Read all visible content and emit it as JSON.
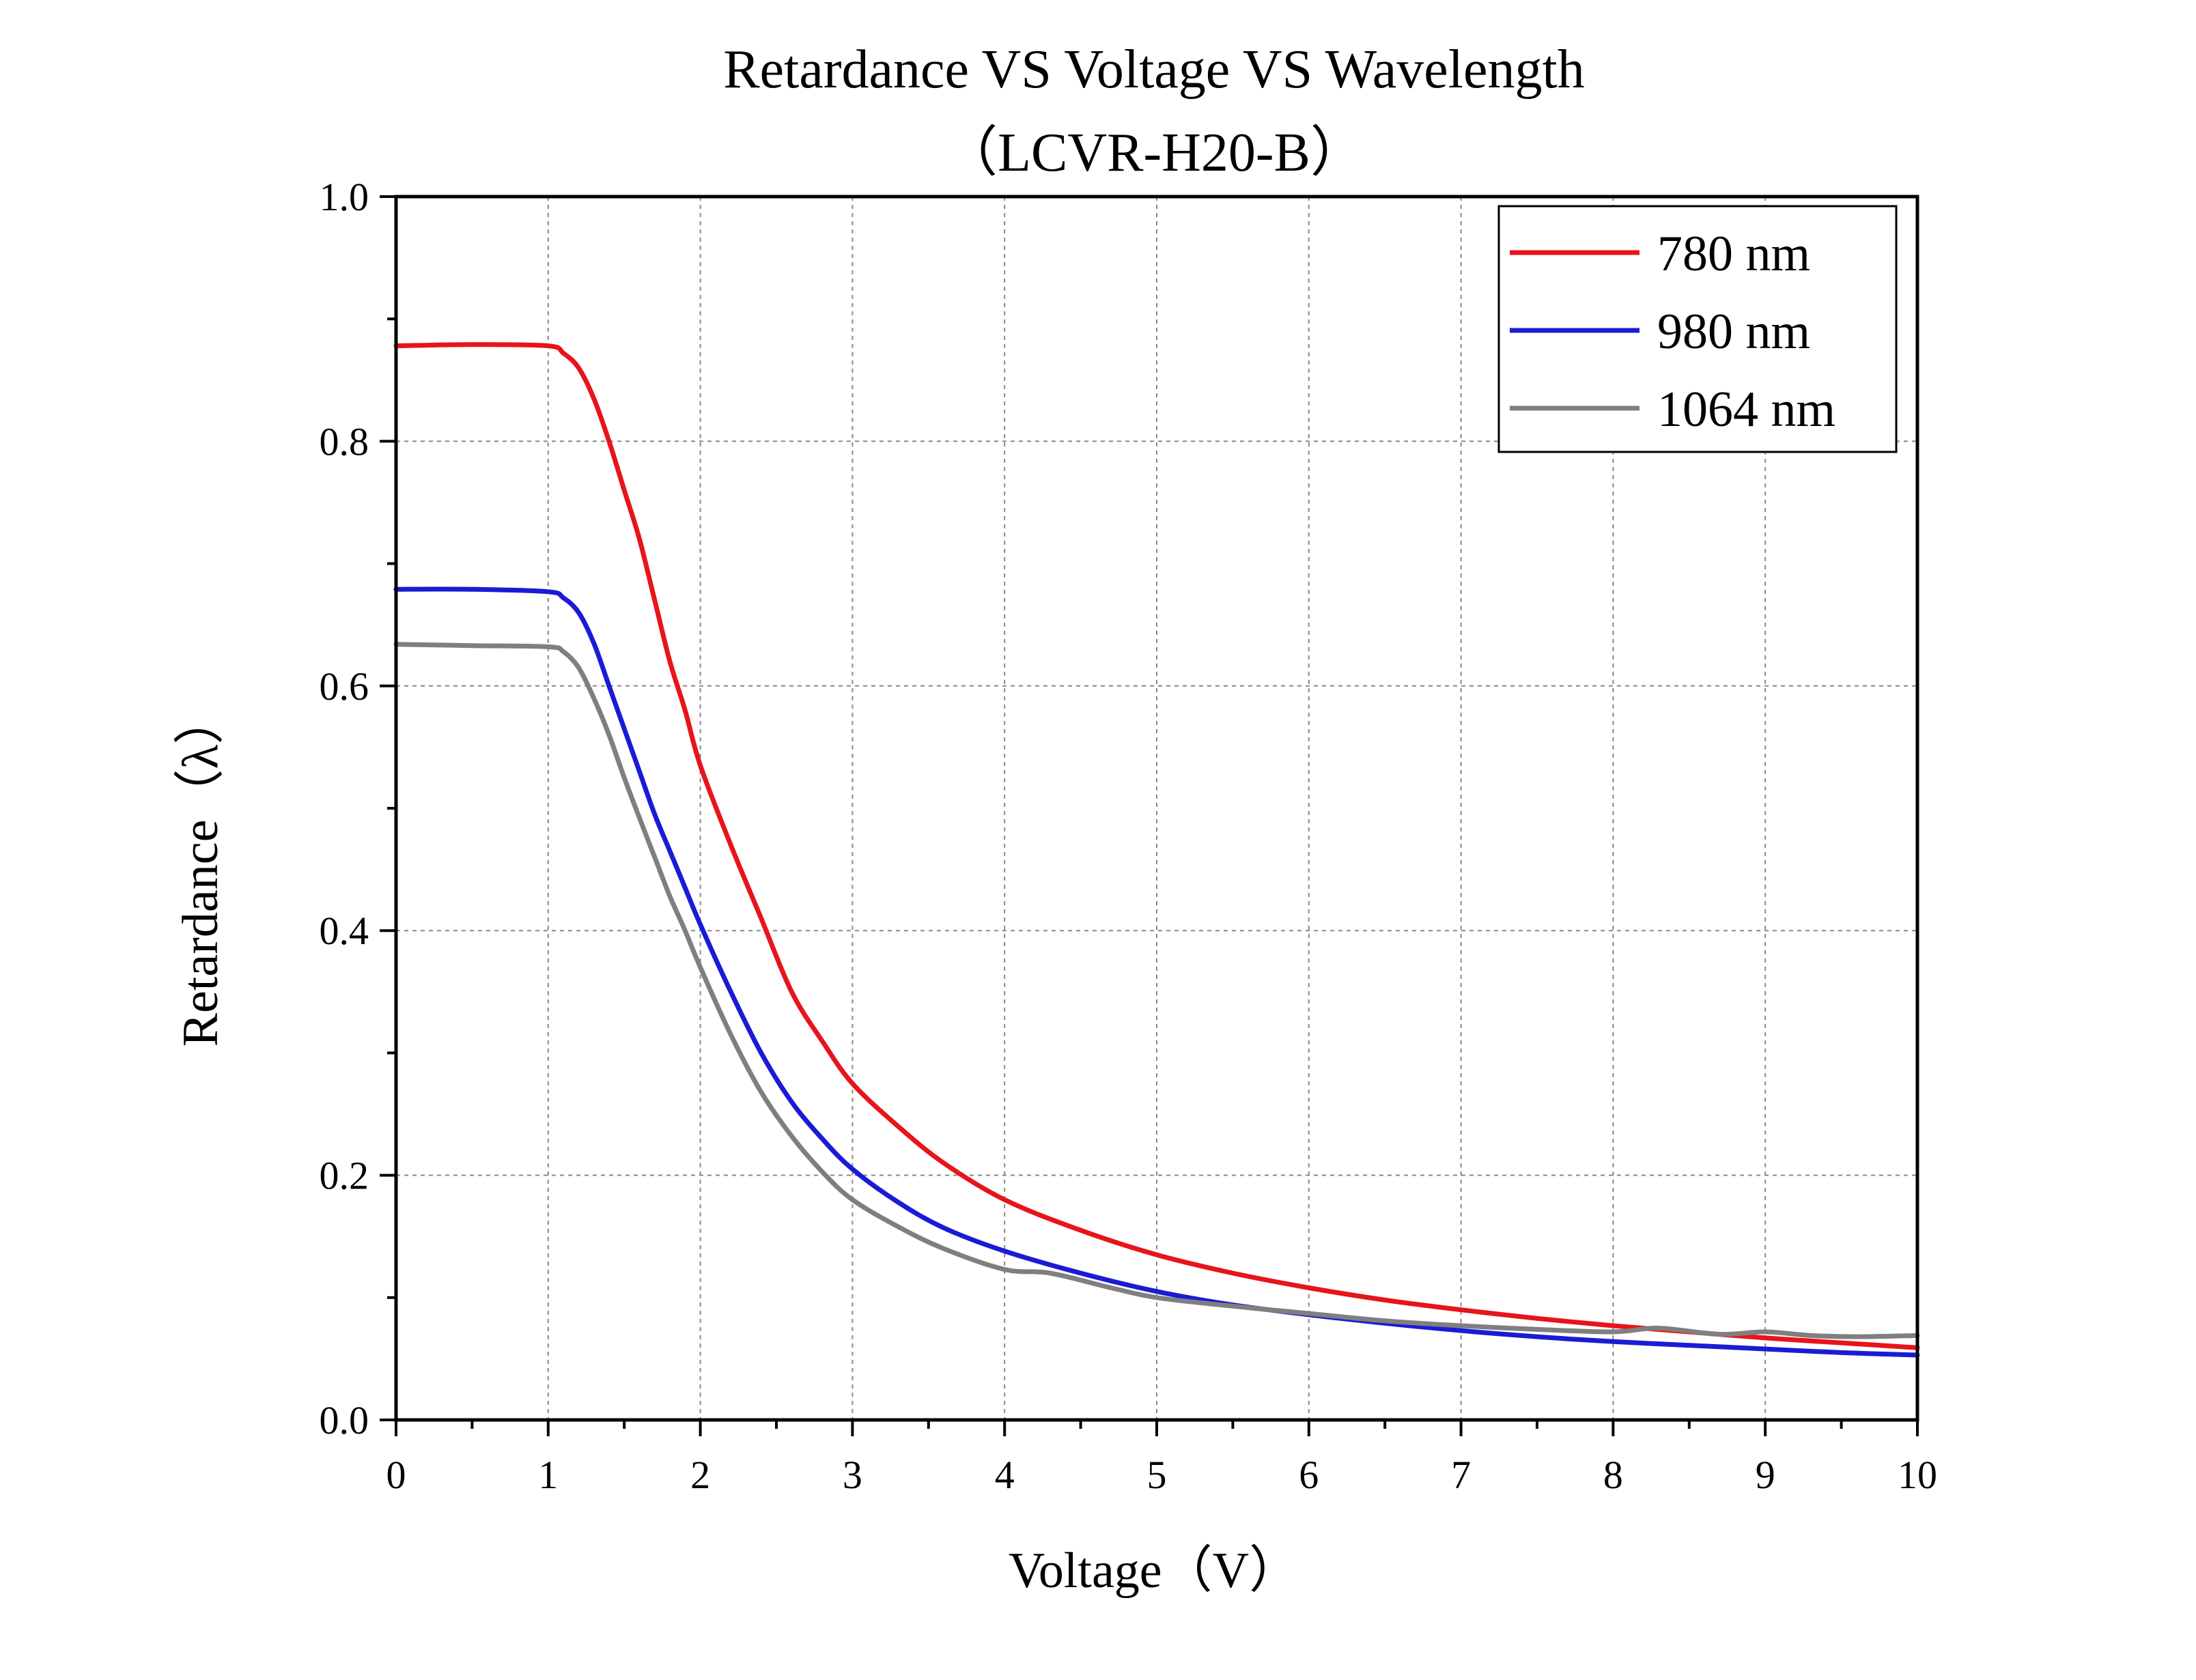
{
  "chart_data": {
    "type": "line",
    "title": "Retardance VS Voltage VS Wavelength",
    "subtitle": "（LCVR-H20-B）",
    "xlabel": "Voltage（V）",
    "ylabel": "Retardance（λ）",
    "xlim": [
      0,
      10
    ],
    "ylim": [
      0.0,
      1.0
    ],
    "x_ticks": [
      0,
      1,
      2,
      3,
      4,
      5,
      6,
      7,
      8,
      9,
      10
    ],
    "x_tick_labels": [
      "0",
      "1",
      "2",
      "3",
      "4",
      "5",
      "6",
      "7",
      "8",
      "9",
      "10"
    ],
    "y_ticks": [
      0.0,
      0.2,
      0.4,
      0.6,
      0.8,
      1.0
    ],
    "y_tick_labels": [
      "0.0",
      "0.2",
      "0.4",
      "0.6",
      "0.8",
      "1.0"
    ],
    "grid": true,
    "legend_position": "top-right",
    "series": [
      {
        "name": "780 nm",
        "color": "#e8141b",
        "x": [
          0,
          0.5,
          1.0,
          1.1,
          1.2,
          1.3,
          1.4,
          1.5,
          1.6,
          1.7,
          1.8,
          1.9,
          2.0,
          2.2,
          2.4,
          2.6,
          2.8,
          3.0,
          3.3,
          3.6,
          4.0,
          4.5,
          5.0,
          5.5,
          6.0,
          6.5,
          7.0,
          7.5,
          8.0,
          8.5,
          9.0,
          9.5,
          10.0
        ],
        "y": [
          0.878,
          0.879,
          0.878,
          0.872,
          0.86,
          0.835,
          0.8,
          0.76,
          0.72,
          0.67,
          0.62,
          0.58,
          0.535,
          0.47,
          0.41,
          0.35,
          0.31,
          0.275,
          0.24,
          0.21,
          0.18,
          0.155,
          0.135,
          0.12,
          0.108,
          0.098,
          0.09,
          0.083,
          0.077,
          0.072,
          0.067,
          0.063,
          0.059
        ]
      },
      {
        "name": "980 nm",
        "color": "#1b1bd6",
        "x": [
          0,
          0.5,
          1.0,
          1.1,
          1.2,
          1.3,
          1.4,
          1.5,
          1.6,
          1.7,
          1.8,
          1.9,
          2.0,
          2.2,
          2.4,
          2.6,
          2.8,
          3.0,
          3.3,
          3.6,
          4.0,
          4.5,
          5.0,
          5.5,
          6.0,
          6.5,
          7.0,
          7.5,
          8.0,
          8.5,
          9.0,
          9.5,
          10.0
        ],
        "y": [
          0.679,
          0.679,
          0.677,
          0.672,
          0.66,
          0.635,
          0.6,
          0.565,
          0.53,
          0.495,
          0.465,
          0.435,
          0.405,
          0.35,
          0.3,
          0.26,
          0.23,
          0.205,
          0.178,
          0.157,
          0.138,
          0.12,
          0.105,
          0.094,
          0.086,
          0.079,
          0.073,
          0.068,
          0.064,
          0.061,
          0.058,
          0.055,
          0.053
        ]
      },
      {
        "name": "1064 nm",
        "color": "#7f7f7f",
        "x": [
          0,
          0.5,
          1.0,
          1.1,
          1.2,
          1.3,
          1.4,
          1.5,
          1.6,
          1.7,
          1.8,
          1.9,
          2.0,
          2.2,
          2.4,
          2.6,
          2.8,
          3.0,
          3.3,
          3.6,
          4.0,
          4.3,
          4.7,
          5.0,
          5.5,
          6.0,
          6.5,
          7.0,
          7.5,
          8.0,
          8.3,
          8.7,
          9.0,
          9.3,
          9.6,
          10.0
        ],
        "y": [
          0.634,
          0.633,
          0.632,
          0.628,
          0.615,
          0.59,
          0.56,
          0.525,
          0.492,
          0.46,
          0.428,
          0.4,
          0.37,
          0.315,
          0.268,
          0.232,
          0.203,
          0.18,
          0.158,
          0.14,
          0.123,
          0.12,
          0.108,
          0.1,
          0.093,
          0.087,
          0.081,
          0.077,
          0.074,
          0.072,
          0.075,
          0.07,
          0.072,
          0.069,
          0.068,
          0.069
        ]
      }
    ]
  }
}
